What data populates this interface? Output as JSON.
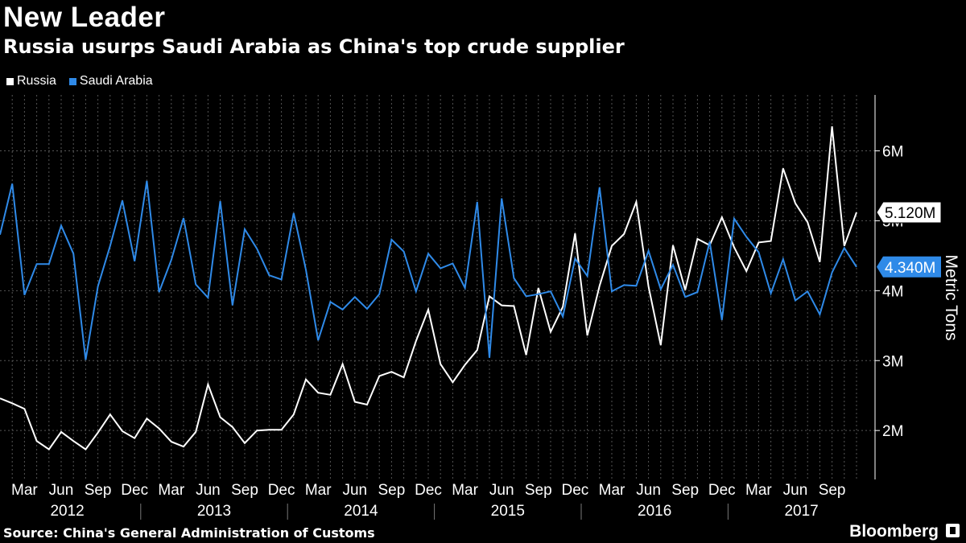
{
  "header": {
    "title": "New Leader",
    "subtitle": "Russia usurps Saudi Arabia as China's top crude supplier"
  },
  "legend": {
    "items": [
      {
        "label": "Russia",
        "color": "#ffffff"
      },
      {
        "label": "Saudi Arabia",
        "color": "#2f8ae8"
      }
    ]
  },
  "footer": {
    "source": "Source: China's General Administration of Customs",
    "brand": "Bloomberg"
  },
  "chart_data": {
    "type": "line",
    "title": "New Leader",
    "subtitle": "Russia usurps Saudi Arabia as China's top crude supplier",
    "ylabel": "Metric Tons",
    "xlabel": "",
    "ylim": [
      1.3,
      6.8
    ],
    "y_ticks": [
      2,
      3,
      4,
      5,
      6
    ],
    "y_tick_labels": [
      "2M",
      "3M",
      "4M",
      "5M",
      "6M"
    ],
    "x_start": "2012-01",
    "x_month_labels": [
      "Mar",
      "Jun",
      "Sep",
      "Dec",
      "Mar",
      "Jun",
      "Sep",
      "Dec",
      "Mar",
      "Jun",
      "Sep",
      "Dec",
      "Mar",
      "Jun",
      "Sep",
      "Dec",
      "Mar",
      "Jun",
      "Sep",
      "Dec",
      "Mar",
      "Jun",
      "Sep"
    ],
    "x_year_labels": [
      "2012",
      "2013",
      "2014",
      "2015",
      "2016",
      "2017"
    ],
    "grid": true,
    "last_value_labels": [
      {
        "series": "Russia",
        "text": "5.120M"
      },
      {
        "series": "Saudi Arabia",
        "text": "4.340M"
      }
    ],
    "series": [
      {
        "name": "Russia",
        "color": "#ffffff",
        "values": [
          2.46,
          2.39,
          2.31,
          1.85,
          1.73,
          1.98,
          1.85,
          1.73,
          1.97,
          2.23,
          1.99,
          1.89,
          2.17,
          2.03,
          1.84,
          1.77,
          1.98,
          2.66,
          2.19,
          2.05,
          1.82,
          2.0,
          2.01,
          2.01,
          2.23,
          2.73,
          2.54,
          2.51,
          2.95,
          2.41,
          2.37,
          2.78,
          2.84,
          2.76,
          3.28,
          3.73,
          2.95,
          2.69,
          2.94,
          3.15,
          3.92,
          3.79,
          3.78,
          3.08,
          4.04,
          3.41,
          3.77,
          4.82,
          3.36,
          4.07,
          4.64,
          4.81,
          5.27,
          4.06,
          3.22,
          4.65,
          4.01,
          4.74,
          4.65,
          5.05,
          4.62,
          4.28,
          4.69,
          4.71,
          5.75,
          5.25,
          4.98,
          4.41,
          6.35,
          4.64,
          5.12
        ]
      },
      {
        "name": "Saudi Arabia",
        "color": "#2f8ae8",
        "values": [
          4.8,
          5.53,
          3.94,
          4.38,
          4.38,
          4.93,
          4.53,
          3.01,
          4.06,
          4.64,
          5.29,
          4.42,
          5.57,
          3.98,
          4.44,
          5.04,
          4.09,
          3.9,
          5.28,
          3.79,
          4.88,
          4.6,
          4.22,
          4.16,
          5.11,
          4.3,
          3.29,
          3.84,
          3.73,
          3.91,
          3.74,
          3.95,
          4.73,
          4.56,
          3.99,
          4.53,
          4.32,
          4.39,
          4.04,
          5.27,
          3.04,
          5.32,
          4.18,
          3.92,
          3.95,
          3.99,
          3.63,
          4.46,
          4.21,
          5.48,
          3.99,
          4.08,
          4.07,
          4.57,
          4.02,
          4.37,
          3.91,
          3.98,
          4.7,
          3.58,
          5.03,
          4.77,
          4.55,
          3.96,
          4.45,
          3.86,
          3.99,
          3.66,
          4.26,
          4.61,
          4.34
        ]
      }
    ]
  }
}
